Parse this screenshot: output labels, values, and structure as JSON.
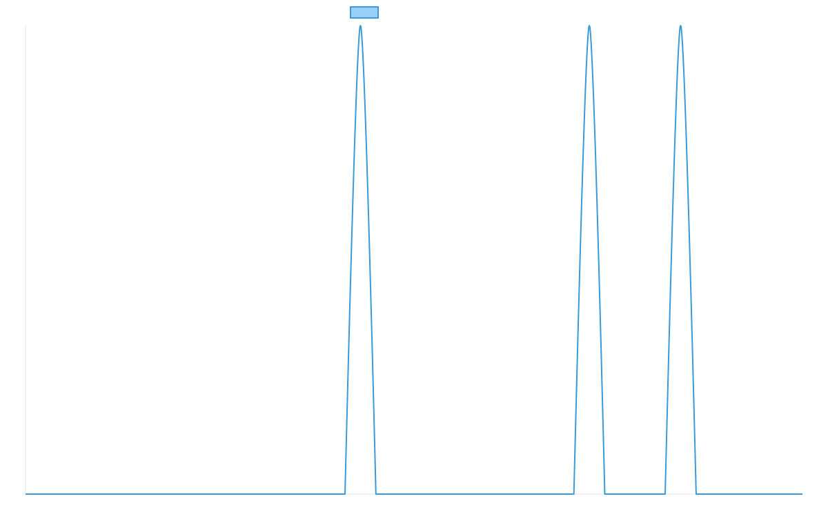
{
  "colors": {
    "series_line": "#3a9ad9",
    "legend_fill": "#9ad0f5",
    "axis_line": "#e4e4e4",
    "background": "#ffffff"
  },
  "chart_data": {
    "type": "line",
    "title": "",
    "xlabel": "",
    "ylabel": "",
    "xlim": [
      0,
      1
    ],
    "ylim": [
      0,
      1
    ],
    "grid": false,
    "legend": {
      "position": "top-center",
      "entries": [
        {
          "label": "",
          "color": "#3a9ad9",
          "fill": "#9ad0f5"
        }
      ]
    },
    "series": [
      {
        "name": "",
        "x": [
          0,
          0.4112,
          0.4311,
          0.451,
          0.7058,
          0.7257,
          0.7456,
          0.8233,
          0.8432,
          0.8631,
          1
        ],
        "y": [
          0,
          0,
          1,
          0,
          0,
          1,
          0,
          0,
          1,
          0,
          0
        ]
      }
    ]
  }
}
